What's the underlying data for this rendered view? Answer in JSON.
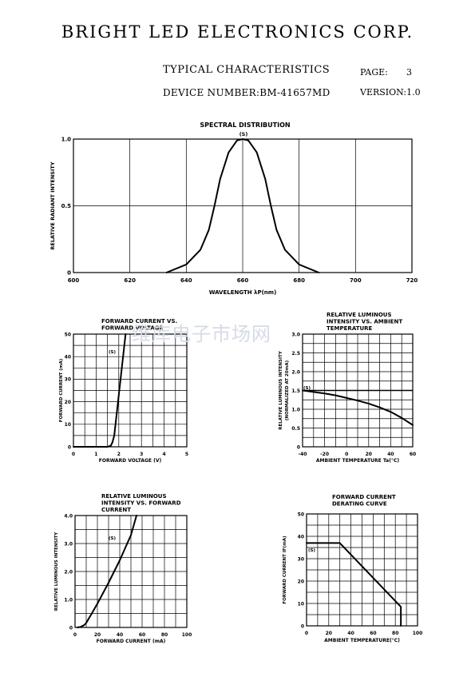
{
  "header": {
    "company": "BRIGHT LED ELECTRONICS CORP.",
    "doc_title": "TYPICAL CHARACTERISTICS",
    "page_label": "PAGE:",
    "page_number": "3",
    "device_number": "DEVICE NUMBER:BM-41657MD",
    "version": "VERSION:1.0"
  },
  "watermark": "维库电子市场网",
  "chart_data": [
    {
      "id": "spectral",
      "type": "line",
      "title": [
        "SPECTRAL DISTRIBUTION"
      ],
      "xlabel": "WAVELENGTH λP(nm)",
      "ylabel": "RELATIVE RADIANT INTENSITY",
      "xlim": [
        600,
        720
      ],
      "ylim": [
        0,
        1.0
      ],
      "x_ticks": [
        "600",
        "620",
        "640",
        "660",
        "680",
        "700",
        "720"
      ],
      "y_ticks": [
        "0",
        "0.5",
        "1.0"
      ],
      "x_grid": [
        600,
        620,
        640,
        660,
        680,
        700,
        720
      ],
      "y_grid": [
        0,
        0.5,
        1.0
      ],
      "grid": true,
      "series": [
        {
          "label": "(S)",
          "x": [
            633,
            640,
            645,
            648,
            650,
            652,
            655,
            658,
            660,
            662,
            665,
            668,
            670,
            672,
            675,
            680,
            687
          ],
          "y": [
            0.0,
            0.06,
            0.17,
            0.32,
            0.5,
            0.7,
            0.9,
            0.99,
            1.0,
            0.99,
            0.9,
            0.7,
            0.5,
            0.32,
            0.17,
            0.06,
            0.0
          ]
        }
      ]
    },
    {
      "id": "if_vf",
      "type": "line",
      "title": [
        "FORWARD CURRENT VS.",
        "FORWARD VOLTAGE"
      ],
      "xlabel": "FORWARD VOLTAGE (V)",
      "ylabel": "FORWARD CURRENT (mA)",
      "xlim": [
        0,
        5
      ],
      "ylim": [
        0,
        50
      ],
      "x_ticks": [
        "0",
        "1",
        "2",
        "3",
        "4",
        "5"
      ],
      "y_ticks": [
        "0",
        "10",
        "20",
        "30",
        "40",
        "50"
      ],
      "x_grid": [
        0,
        0.5,
        1,
        1.5,
        2,
        2.5,
        3,
        3.5,
        4,
        4.5,
        5
      ],
      "y_grid": [
        0,
        5,
        10,
        15,
        20,
        25,
        30,
        35,
        40,
        45,
        50
      ],
      "grid": true,
      "series": [
        {
          "label": "(S)",
          "x": [
            0,
            1.5,
            1.65,
            1.72,
            1.8,
            2.3
          ],
          "y": [
            0,
            0,
            0.5,
            2,
            5,
            50
          ]
        }
      ]
    },
    {
      "id": "iv_ta",
      "type": "line",
      "title": [
        "RELATIVE LUMINOUS",
        "INTENSITY VS. AMBIENT",
        "TEMPERATURE"
      ],
      "xlabel": "AMBIENT TEMPERATURE Ta(°C)",
      "ylabel": "RELATIVE LUMINOUS INTENSITY",
      "ylabel2": "(NORMALIZED AT 20mA)",
      "xlim": [
        -40,
        60
      ],
      "ylim": [
        0,
        3.0
      ],
      "x_ticks": [
        "-40",
        "-20",
        "0",
        "20",
        "40",
        "60"
      ],
      "y_ticks": [
        "0",
        "0.5",
        "1.0",
        "1.5",
        "2.0",
        "2.5",
        "3.0"
      ],
      "x_grid": [
        -40,
        -30,
        -20,
        -10,
        0,
        10,
        20,
        30,
        40,
        50,
        60
      ],
      "y_grid": [
        0,
        0.25,
        0.5,
        0.75,
        1.0,
        1.25,
        1.5,
        1.75,
        2.0,
        2.25,
        2.5,
        2.75,
        3.0
      ],
      "grid": true,
      "hline": 1.5,
      "series": [
        {
          "label": "(S)",
          "x": [
            -40,
            -30,
            -20,
            -10,
            0,
            10,
            20,
            30,
            40,
            50,
            60
          ],
          "y": [
            1.5,
            1.46,
            1.42,
            1.37,
            1.3,
            1.23,
            1.15,
            1.05,
            0.93,
            0.77,
            0.58
          ]
        }
      ]
    },
    {
      "id": "iv_if",
      "type": "line",
      "title": [
        "RELATIVE LUMINOUS",
        "INTENSITY VS. FORWARD",
        "CURRENT"
      ],
      "xlabel": "FORWARD CURRENT (mA)",
      "ylabel": "RELATIVE LUMINOUS INTENSITY",
      "xlim": [
        0,
        100
      ],
      "ylim": [
        0,
        4.0
      ],
      "x_ticks": [
        "0",
        "20",
        "40",
        "60",
        "80",
        "100"
      ],
      "y_ticks": [
        "0",
        "1.0",
        "2.0",
        "3.0",
        "4.0"
      ],
      "x_grid": [
        0,
        10,
        20,
        30,
        40,
        50,
        60,
        70,
        80,
        90,
        100
      ],
      "y_grid": [
        0,
        0.5,
        1.0,
        1.5,
        2.0,
        2.5,
        3.0,
        3.5,
        4.0
      ],
      "grid": true,
      "series": [
        {
          "label": "(S)",
          "x": [
            2,
            5,
            8,
            10,
            12,
            15,
            20,
            30,
            40,
            50,
            55
          ],
          "y": [
            0,
            0.02,
            0.08,
            0.16,
            0.3,
            0.5,
            0.85,
            1.6,
            2.4,
            3.3,
            4.0
          ]
        }
      ]
    },
    {
      "id": "derating",
      "type": "line",
      "title": [
        "FORWARD CURRENT",
        "DERATING CURVE"
      ],
      "xlabel": "AMBIENT TEMPERATURE(°C)",
      "ylabel": "FORWARD CURRENT IF(mA)",
      "xlim": [
        0,
        100
      ],
      "ylim": [
        0,
        50
      ],
      "x_ticks": [
        "0",
        "20",
        "40",
        "60",
        "80",
        "100"
      ],
      "y_ticks": [
        "0",
        "10",
        "20",
        "30",
        "40",
        "50"
      ],
      "x_grid": [
        0,
        10,
        20,
        30,
        40,
        50,
        60,
        70,
        80,
        90,
        100
      ],
      "y_grid": [
        0,
        5,
        10,
        15,
        20,
        25,
        30,
        35,
        40,
        45,
        50
      ],
      "grid": true,
      "series": [
        {
          "label": "(S)",
          "x": [
            0,
            30,
            85,
            85
          ],
          "y": [
            37,
            37,
            8.5,
            0
          ]
        }
      ]
    }
  ]
}
